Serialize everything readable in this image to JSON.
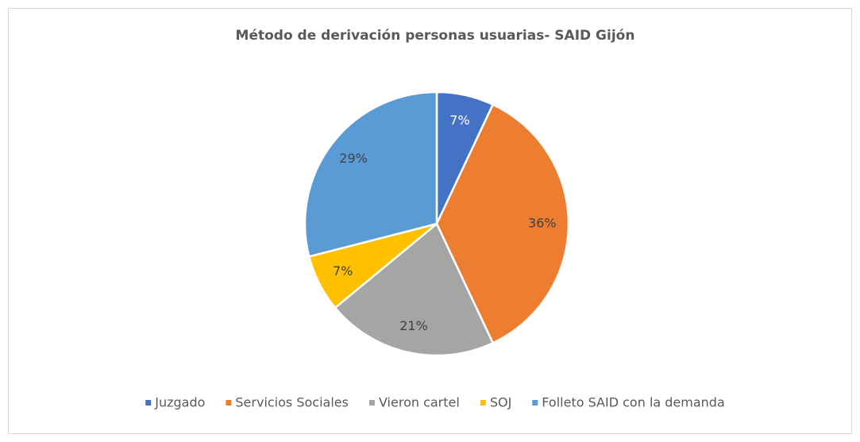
{
  "chart_data": {
    "type": "pie",
    "title": "Método de derivación personas usuarias- SAID Gijón",
    "categories": [
      "Juzgado",
      "Servicios Sociales",
      "Vieron cartel",
      "SOJ",
      "Folleto SAID con la demanda"
    ],
    "values": [
      7,
      36,
      21,
      7,
      29
    ],
    "value_labels": [
      "7%",
      "36%",
      "21%",
      "7%",
      "29%"
    ],
    "colors": [
      "#4472c4",
      "#ed7d31",
      "#a5a5a5",
      "#ffc000",
      "#5b9bd5"
    ],
    "legend": "bottom"
  }
}
